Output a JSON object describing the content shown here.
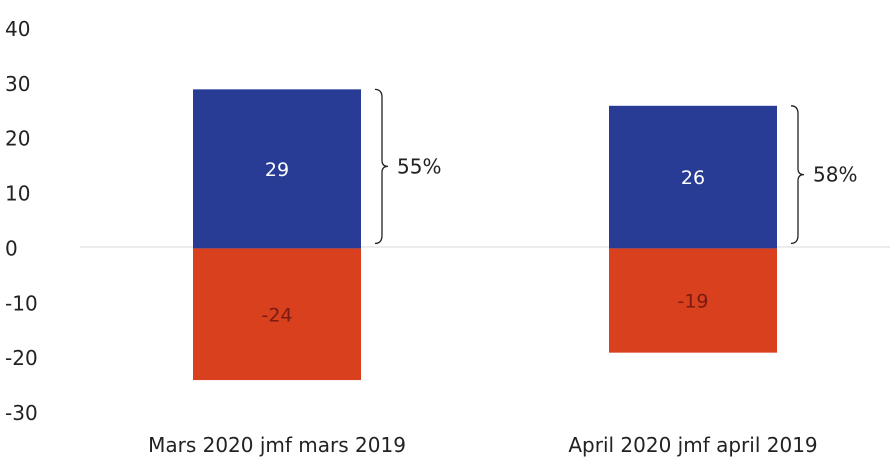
{
  "chart_data": {
    "type": "bar",
    "stacked": true,
    "categories": [
      "Mars 2020 jmf mars 2019",
      "April 2020 jmf april 2019"
    ],
    "series": [
      {
        "values": [
          29,
          26
        ],
        "color": "#283c96"
      },
      {
        "values": [
          -24,
          -19
        ],
        "color": "#d8401e"
      }
    ],
    "data_labels": {
      "positive": [
        "29",
        "26"
      ],
      "negative": [
        "-24",
        "-19"
      ]
    },
    "annotations": [
      {
        "category": "Mars 2020 jmf mars 2019",
        "text": "55%",
        "spans": "positive"
      },
      {
        "category": "April 2020 jmf april 2019",
        "text": "58%",
        "spans": "positive"
      }
    ],
    "ylim": [
      -30,
      40
    ],
    "yticks": [
      "40",
      "30",
      "20",
      "10",
      "0",
      "-10",
      "-20",
      "-30"
    ],
    "grid": false,
    "legend": "none"
  }
}
